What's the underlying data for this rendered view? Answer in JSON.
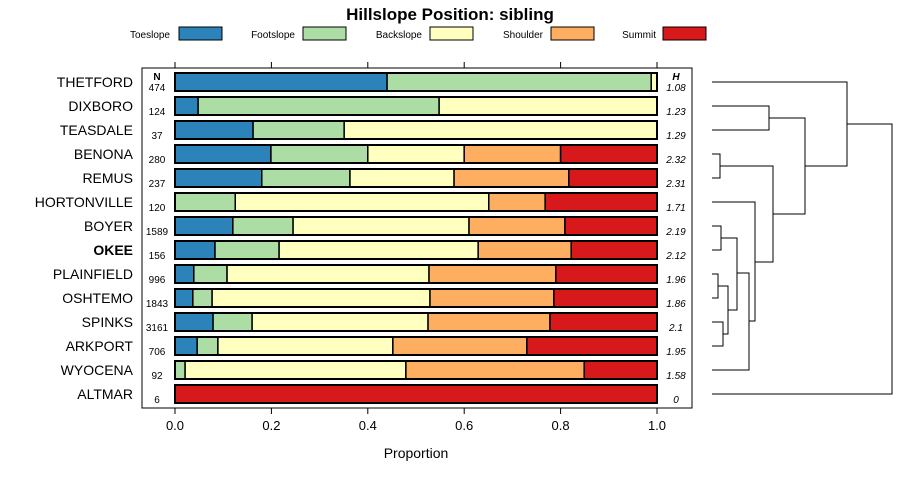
{
  "chart_data": {
    "type": "bar",
    "orientation": "horizontal-stacked",
    "title": "Hillslope Position: sibling",
    "xlabel": "Proportion",
    "xlim": [
      0,
      1
    ],
    "xticks": [
      "0.0",
      "0.2",
      "0.4",
      "0.6",
      "0.8",
      "1.0"
    ],
    "xtick_values": [
      0,
      0.2,
      0.4,
      0.6,
      0.8,
      1.0
    ],
    "n_header": "N",
    "h_header": "H",
    "legend_position": "top",
    "series": [
      {
        "name": "Toeslope",
        "color": "#2B83BA"
      },
      {
        "name": "Footslope",
        "color": "#ABDDA4"
      },
      {
        "name": "Backslope",
        "color": "#FFFFBF"
      },
      {
        "name": "Shoulder",
        "color": "#FDAE61"
      },
      {
        "name": "Summit",
        "color": "#D7191C"
      }
    ],
    "categories": [
      {
        "name": "THETFORD",
        "n": "474",
        "h": "1.08",
        "values": [
          0.44,
          0.548,
          0.012,
          0,
          0
        ]
      },
      {
        "name": "DIXBORO",
        "n": "124",
        "h": "1.23",
        "values": [
          0.048,
          0.5,
          0.452,
          0,
          0
        ]
      },
      {
        "name": "TEASDALE",
        "n": "37",
        "h": "1.29",
        "values": [
          0.162,
          0.189,
          0.649,
          0,
          0
        ]
      },
      {
        "name": "BENONA",
        "n": "280",
        "h": "2.32",
        "values": [
          0.199,
          0.201,
          0.2,
          0.2,
          0.2
        ]
      },
      {
        "name": "REMUS",
        "n": "237",
        "h": "2.31",
        "values": [
          0.18,
          0.183,
          0.216,
          0.238,
          0.183
        ]
      },
      {
        "name": "HORTONVILLE",
        "n": "120",
        "h": "1.71",
        "values": [
          0,
          0.125,
          0.526,
          0.117,
          0.232
        ]
      },
      {
        "name": "BOYER",
        "n": "1589",
        "h": "2.19",
        "values": [
          0.12,
          0.125,
          0.365,
          0.199,
          0.191
        ]
      },
      {
        "name": "OKEE",
        "n": "156",
        "h": "2.12",
        "values": [
          0.083,
          0.133,
          0.413,
          0.193,
          0.178
        ],
        "bold": true
      },
      {
        "name": "PLAINFIELD",
        "n": "996",
        "h": "1.96",
        "values": [
          0.039,
          0.069,
          0.419,
          0.263,
          0.21
        ]
      },
      {
        "name": "OSHTEMO",
        "n": "1843",
        "h": "1.86",
        "values": [
          0.037,
          0.04,
          0.452,
          0.257,
          0.214
        ]
      },
      {
        "name": "SPINKS",
        "n": "3161",
        "h": "2.1",
        "values": [
          0.079,
          0.081,
          0.365,
          0.253,
          0.222
        ]
      },
      {
        "name": "ARKPORT",
        "n": "706",
        "h": "1.95",
        "values": [
          0.046,
          0.043,
          0.363,
          0.278,
          0.27
        ]
      },
      {
        "name": "WYOCENA",
        "n": "92",
        "h": "1.58",
        "values": [
          0,
          0.021,
          0.458,
          0.37,
          0.151
        ]
      },
      {
        "name": "ALTMAR",
        "n": "6",
        "h": "0",
        "values": [
          0,
          0,
          0,
          0,
          1
        ]
      }
    ]
  }
}
